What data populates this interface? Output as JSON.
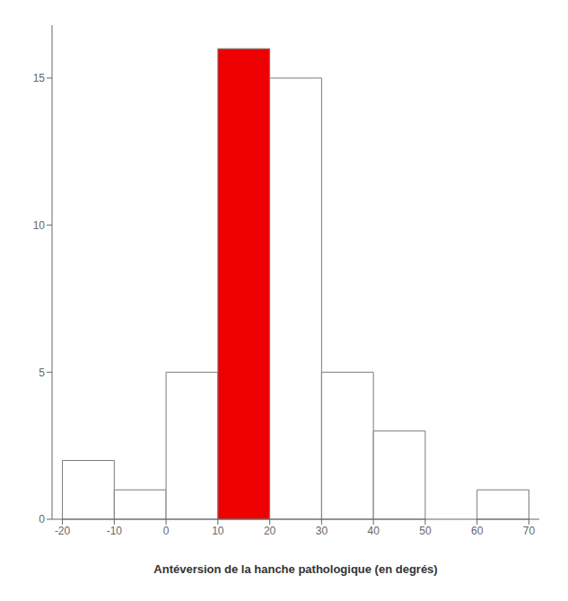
{
  "chart_data": {
    "type": "histogram",
    "bins": [
      -20,
      -10,
      0,
      10,
      20,
      30,
      40,
      50,
      60,
      70
    ],
    "values": [
      2,
      1,
      5,
      16,
      15,
      5,
      3,
      0,
      1
    ],
    "colors": [
      "#ffffff",
      "#ffffff",
      "#ffffff",
      "#ee0000",
      "#ffffff",
      "#ffffff",
      "#ffffff",
      "#ffffff",
      "#ffffff"
    ],
    "xlabel": "Antéversion de la hanche pathologique (en degrés)",
    "xlim": [
      -22,
      72
    ],
    "ylim": [
      0,
      16.8
    ],
    "xticks": [
      -20,
      -10,
      0,
      10,
      20,
      30,
      40,
      50,
      60,
      70
    ],
    "yticks": [
      0,
      5,
      10,
      15
    ],
    "grid": false
  }
}
